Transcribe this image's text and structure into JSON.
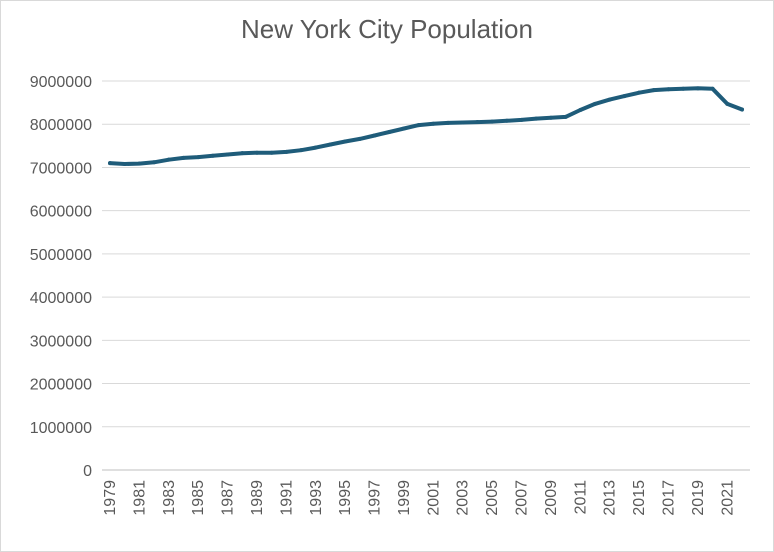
{
  "chart_data": {
    "type": "line",
    "title": "New York City Population",
    "xlabel": "",
    "ylabel": "",
    "ylim": [
      0,
      9000000
    ],
    "yticks": [
      0,
      1000000,
      2000000,
      3000000,
      4000000,
      5000000,
      6000000,
      7000000,
      8000000,
      9000000
    ],
    "ytick_labels": [
      "0",
      "1000000",
      "2000000",
      "3000000",
      "4000000",
      "5000000",
      "6000000",
      "7000000",
      "8000000",
      "9000000"
    ],
    "xtick_labels": [
      "1979",
      "1981",
      "1983",
      "1985",
      "1987",
      "1989",
      "1991",
      "1993",
      "1995",
      "1997",
      "1999",
      "2001",
      "2003",
      "2005",
      "2007",
      "2009",
      "2011",
      "2013",
      "2015",
      "2017",
      "2019",
      "2021"
    ],
    "grid": true,
    "legend": "none",
    "line_color": "#1f5c7a",
    "series": [
      {
        "x": [
          1979,
          1980,
          1981,
          1982,
          1983,
          1984,
          1985,
          1986,
          1987,
          1988,
          1989,
          1990,
          1991,
          1992,
          1993,
          1994,
          1995,
          1996,
          1997,
          1998,
          1999,
          2000,
          2001,
          2002,
          2003,
          2004,
          2005,
          2006,
          2007,
          2008,
          2009,
          2010,
          2011,
          2012,
          2013,
          2014,
          2015,
          2016,
          2017,
          2018,
          2019,
          2020,
          2021,
          2022
        ],
        "values": [
          7100000,
          7080000,
          7090000,
          7120000,
          7180000,
          7220000,
          7240000,
          7270000,
          7300000,
          7330000,
          7340000,
          7340000,
          7360000,
          7400000,
          7460000,
          7530000,
          7600000,
          7660000,
          7740000,
          7820000,
          7900000,
          7980000,
          8010000,
          8030000,
          8040000,
          8050000,
          8060000,
          8080000,
          8100000,
          8130000,
          8150000,
          8170000,
          8330000,
          8470000,
          8570000,
          8650000,
          8730000,
          8790000,
          8810000,
          8820000,
          8830000,
          8820000,
          8470000,
          8340000
        ]
      }
    ]
  }
}
